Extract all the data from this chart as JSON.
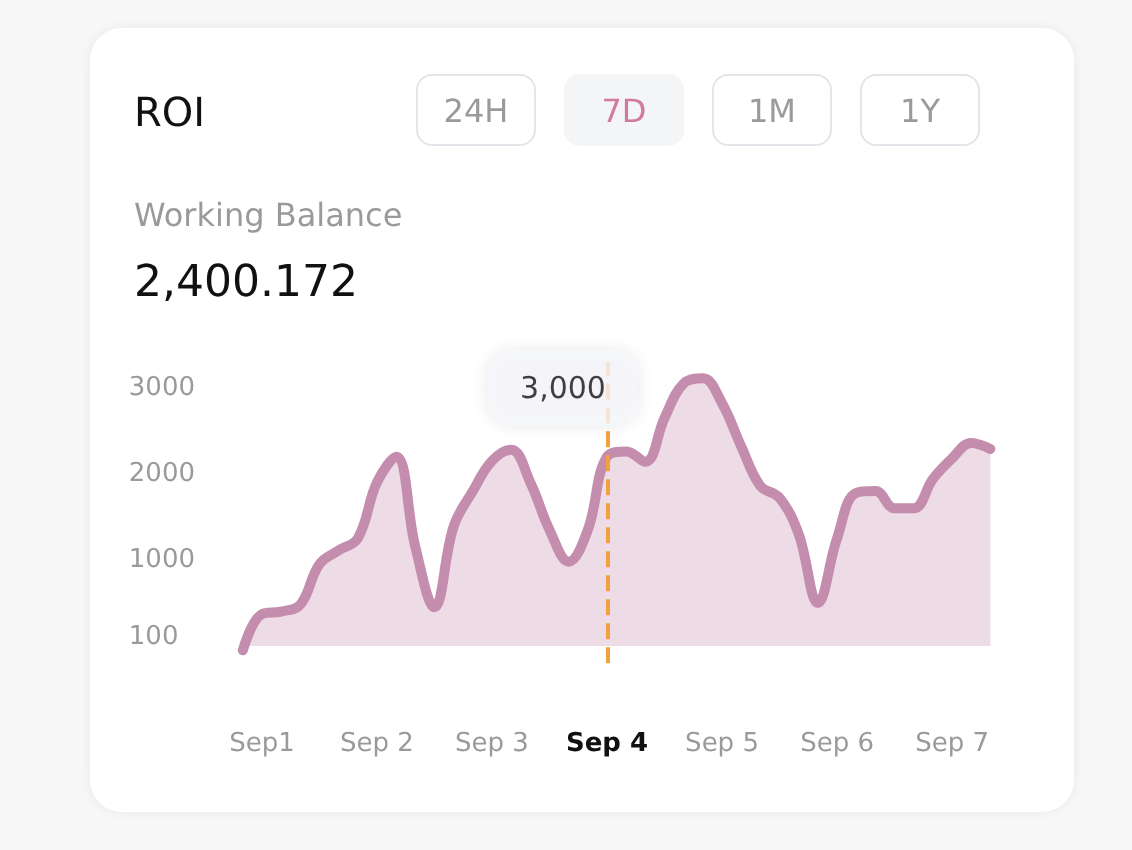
{
  "chart_data": {
    "type": "area",
    "title": "ROI",
    "subtitle": "Working Balance",
    "annotations": [
      "24H",
      "7D",
      "1M",
      "1Y",
      "2,400.172",
      {
        "text": "3,000",
        "x": "Sep 4",
        "y": 3000
      }
    ],
    "categories": [
      null,
      "Sep1",
      null,
      null,
      null,
      null,
      null,
      "Sep 2",
      null,
      null,
      null,
      null,
      null,
      "Sep 3",
      null,
      null,
      null,
      null,
      null,
      "Sep 4",
      null,
      null,
      null,
      null,
      null,
      "Sep 5",
      null,
      null,
      null,
      null,
      null,
      "Sep 6",
      null,
      null,
      null,
      null,
      null,
      "Sep 7",
      null,
      null
    ],
    "ylim": [
      -200,
      3300
    ],
    "yticks": [
      100,
      1000,
      2000,
      3000
    ],
    "grid": false,
    "marker": "none",
    "ref_lines": [
      {
        "axis": "x",
        "value": "Sep 4",
        "color": "#f5a040",
        "line_style": "dashed"
      }
    ],
    "series": [
      {
        "color": "#c48cad",
        "values": [
          -50,
          370,
          400,
          480,
          950,
          1110,
          1250,
          1900,
          2200,
          1150,
          450,
          1390,
          1800,
          2150,
          2280,
          1900,
          1350,
          980,
          1350,
          2200,
          2260,
          2140,
          2650,
          3050,
          3110,
          2820,
          2320,
          1860,
          1720,
          1300,
          500,
          1250,
          1780,
          1800,
          1600,
          1600,
          1940,
          2180,
          2360,
          2290
        ]
      }
    ]
  }
}
